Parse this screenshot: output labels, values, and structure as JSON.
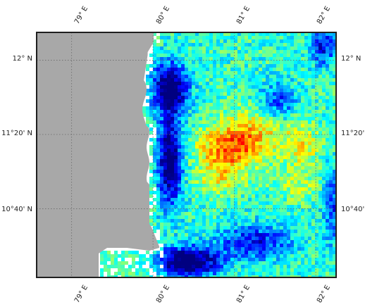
{
  "map": {
    "colors": {
      "land": "#a8a8a8",
      "frame": "#1f1f1f",
      "grid": "#6b6b6b",
      "background": "#ffffff"
    },
    "lon_extent": [
      78.57,
      82.25
    ],
    "lat_extent": [
      10.05,
      12.25
    ],
    "lon_ticks": [
      {
        "value": 79,
        "label": "79° E"
      },
      {
        "value": 80,
        "label": "80° E"
      },
      {
        "value": 81,
        "label": "81° E"
      },
      {
        "value": 82,
        "label": "82° E"
      }
    ],
    "lat_ticks": [
      {
        "value": 12.0,
        "label": "12° N"
      },
      {
        "value": 11.3333,
        "label": "11°20' N"
      },
      {
        "value": 10.6667,
        "label": "10°40' N"
      }
    ],
    "colormap": "jet",
    "grid_lines": "dotted",
    "field_description_hidden": true
  }
}
